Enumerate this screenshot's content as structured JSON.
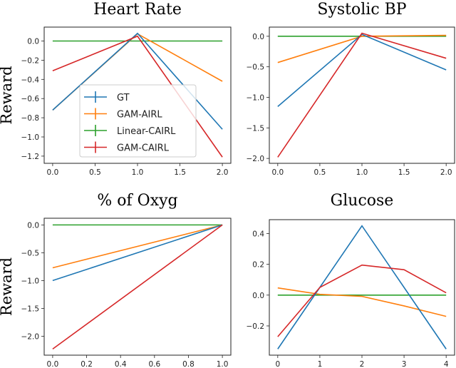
{
  "chart_data": [
    {
      "type": "line",
      "title": "Heart Rate",
      "ylabel": "Reward",
      "x": [
        0,
        1,
        2
      ],
      "xticks": [
        "0.0",
        "0.5",
        "1.0",
        "1.5",
        "2.0"
      ],
      "xtick_values": [
        0,
        0.5,
        1,
        1.5,
        2
      ],
      "yticks": [
        "0.0",
        "−0.2",
        "−0.4",
        "−0.6",
        "−0.8",
        "−1.0",
        "−1.2"
      ],
      "ytick_values": [
        0,
        -0.2,
        -0.4,
        -0.6,
        -0.8,
        -1.0,
        -1.2
      ],
      "xlim": [
        -0.1,
        2.1
      ],
      "ylim": [
        -1.275,
        0.145
      ],
      "legend": "center",
      "series": [
        {
          "name": "GT",
          "values": [
            -0.72,
            0.08,
            -0.92
          ]
        },
        {
          "name": "GAM-AIRL",
          "values": [
            -0.72,
            0.075,
            -0.42
          ]
        },
        {
          "name": "Linear-CAIRL",
          "values": [
            0,
            0,
            0
          ]
        },
        {
          "name": "GAM-CAIRL",
          "values": [
            -0.31,
            0.05,
            -1.21
          ]
        }
      ]
    },
    {
      "type": "line",
      "title": "Systolic BP",
      "ylabel": "",
      "x": [
        0,
        1,
        2
      ],
      "xticks": [
        "0.0",
        "0.5",
        "1.0",
        "1.5",
        "2.0"
      ],
      "xtick_values": [
        0,
        0.5,
        1,
        1.5,
        2
      ],
      "yticks": [
        "0.0",
        "−0.5",
        "−1.0",
        "−1.5",
        "−2.0"
      ],
      "ytick_values": [
        0,
        -0.5,
        -1.0,
        -1.5,
        -2.0
      ],
      "xlim": [
        -0.1,
        2.1
      ],
      "ylim": [
        -2.08,
        0.15
      ],
      "series": [
        {
          "name": "GT",
          "values": [
            -1.15,
            0.03,
            -0.55
          ]
        },
        {
          "name": "GAM-AIRL",
          "values": [
            -0.43,
            0.0,
            0.015
          ]
        },
        {
          "name": "Linear-CAIRL",
          "values": [
            0,
            0,
            0
          ]
        },
        {
          "name": "GAM-CAIRL",
          "values": [
            -1.98,
            0.05,
            -0.36
          ]
        }
      ]
    },
    {
      "type": "line",
      "title": "% of Oxyg",
      "ylabel": "Reward",
      "x": [
        0,
        1
      ],
      "xticks": [
        "0.0",
        "0.2",
        "0.4",
        "0.6",
        "0.8",
        "1.0"
      ],
      "xtick_values": [
        0,
        0.2,
        0.4,
        0.6,
        0.8,
        1.0
      ],
      "yticks": [
        "0.0",
        "−0.5",
        "−1.0",
        "−1.5",
        "−2.0"
      ],
      "ytick_values": [
        0,
        -0.5,
        -1.0,
        -1.5,
        -2.0
      ],
      "xlim": [
        -0.05,
        1.05
      ],
      "ylim": [
        -2.34,
        0.12
      ],
      "series": [
        {
          "name": "GT",
          "values": [
            -1.0,
            0.0
          ]
        },
        {
          "name": "GAM-AIRL",
          "values": [
            -0.77,
            0.0
          ]
        },
        {
          "name": "Linear-CAIRL",
          "values": [
            0,
            0
          ]
        },
        {
          "name": "GAM-CAIRL",
          "values": [
            -2.23,
            0.0
          ]
        }
      ]
    },
    {
      "type": "line",
      "title": "Glucose",
      "ylabel": "",
      "x": [
        0,
        1,
        2,
        3,
        4
      ],
      "xticks": [
        "0",
        "1",
        "2",
        "3",
        "4"
      ],
      "xtick_values": [
        0,
        1,
        2,
        3,
        4
      ],
      "yticks": [
        "−0.2",
        "0.0",
        "0.2",
        "0.4"
      ],
      "ytick_values": [
        -0.2,
        0,
        0.2,
        0.4
      ],
      "xlim": [
        -0.2,
        4.2
      ],
      "ylim": [
        -0.39,
        0.49
      ],
      "series": [
        {
          "name": "GT",
          "values": [
            -0.35,
            0.05,
            0.45,
            0.05,
            -0.35
          ]
        },
        {
          "name": "GAM-AIRL",
          "values": [
            0.047,
            0.005,
            -0.008,
            -0.07,
            -0.138
          ]
        },
        {
          "name": "Linear-CAIRL",
          "values": [
            0,
            0,
            0,
            0,
            0
          ]
        },
        {
          "name": "GAM-CAIRL",
          "values": [
            -0.27,
            0.05,
            0.195,
            0.165,
            0.015
          ]
        }
      ]
    }
  ],
  "colors": {
    "GT": "#1f77b4",
    "GAM-AIRL": "#ff7f0e",
    "Linear-CAIRL": "#2ca02c",
    "GAM-CAIRL": "#d62728"
  }
}
